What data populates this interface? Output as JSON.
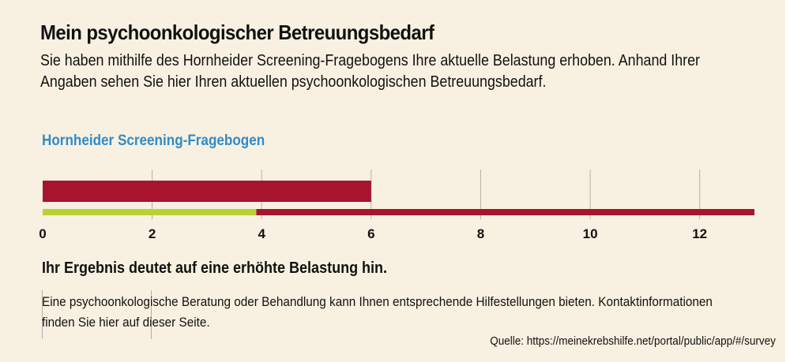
{
  "header": {
    "title": "Mein psychoonkologischer Betreuungsbedarf",
    "intro": "Sie haben mithilfe des Hornheider Screening-Fragebogens Ihre aktuelle Belastung erhoben. Anhand Ihrer Angaben sehen Sie hier Ihren aktuellen psychoonkologischen Betreuungsbedarf."
  },
  "chart_heading": "Hornheider Screening-Fragebogen",
  "chart_data": {
    "type": "bar",
    "xlim": [
      0,
      13
    ],
    "ticks": [
      0,
      2,
      4,
      6,
      8,
      10,
      12
    ],
    "grid": true,
    "score": 6,
    "scale": {
      "max": 13,
      "threshold": 3.9
    },
    "colors": {
      "score": "#a6152d",
      "scale_high": "#a6152d",
      "scale_low": "#b9d233",
      "grid": "#b6b0a6"
    }
  },
  "result": {
    "headline": "Ihr Ergebnis deutet auf eine erhöhte Belastung hin.",
    "advice": "Eine psychoonkologische Beratung oder Behandlung kann Ihnen entsprechende Hilfestellungen bieten. Kontaktinformationen finden Sie hier auf dieser Seite."
  },
  "source": "Quelle: https://meinekrebshilfe.net/portal/public/app/#/survey",
  "colors": {
    "background": "#f8f1e1",
    "accent_blue": "#2f8bc8"
  }
}
